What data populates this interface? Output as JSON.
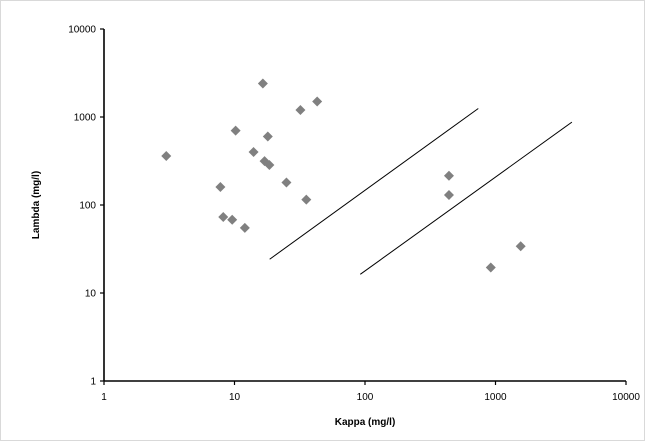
{
  "chart_data": {
    "type": "scatter",
    "title": "",
    "xlabel": "Kappa (mg/l)",
    "ylabel": "Lambda (mg/l)",
    "xscale": "log",
    "yscale": "log",
    "xlim": [
      1,
      10000
    ],
    "ylim": [
      1,
      10000
    ],
    "x_ticks": [
      "1",
      "10",
      "100",
      "1000",
      "10000"
    ],
    "y_ticks": [
      "1",
      "10",
      "100",
      "1000",
      "10000"
    ],
    "grid": false,
    "legend": "none",
    "marker": "diamond",
    "marker_color": "#808080",
    "line_color": "#000000",
    "points": [
      {
        "x": 3,
        "y": 360
      },
      {
        "x": 7.8,
        "y": 160
      },
      {
        "x": 8.2,
        "y": 73
      },
      {
        "x": 9.6,
        "y": 68
      },
      {
        "x": 10.2,
        "y": 700
      },
      {
        "x": 12,
        "y": 55
      },
      {
        "x": 14,
        "y": 400
      },
      {
        "x": 16.5,
        "y": 2400
      },
      {
        "x": 17,
        "y": 315
      },
      {
        "x": 18,
        "y": 600
      },
      {
        "x": 18.5,
        "y": 285
      },
      {
        "x": 25,
        "y": 180
      },
      {
        "x": 32,
        "y": 1200
      },
      {
        "x": 35.5,
        "y": 115
      },
      {
        "x": 43,
        "y": 1500
      },
      {
        "x": 440,
        "y": 215
      },
      {
        "x": 440,
        "y": 130
      },
      {
        "x": 920,
        "y": 19.5
      },
      {
        "x": 1560,
        "y": 34
      }
    ],
    "reference_lines": [
      {
        "x": [
          18.6,
          738
        ],
        "y": [
          24.2,
          1250
        ]
      },
      {
        "x": [
          92,
          3850
        ],
        "y": [
          16.3,
          875
        ]
      }
    ]
  }
}
